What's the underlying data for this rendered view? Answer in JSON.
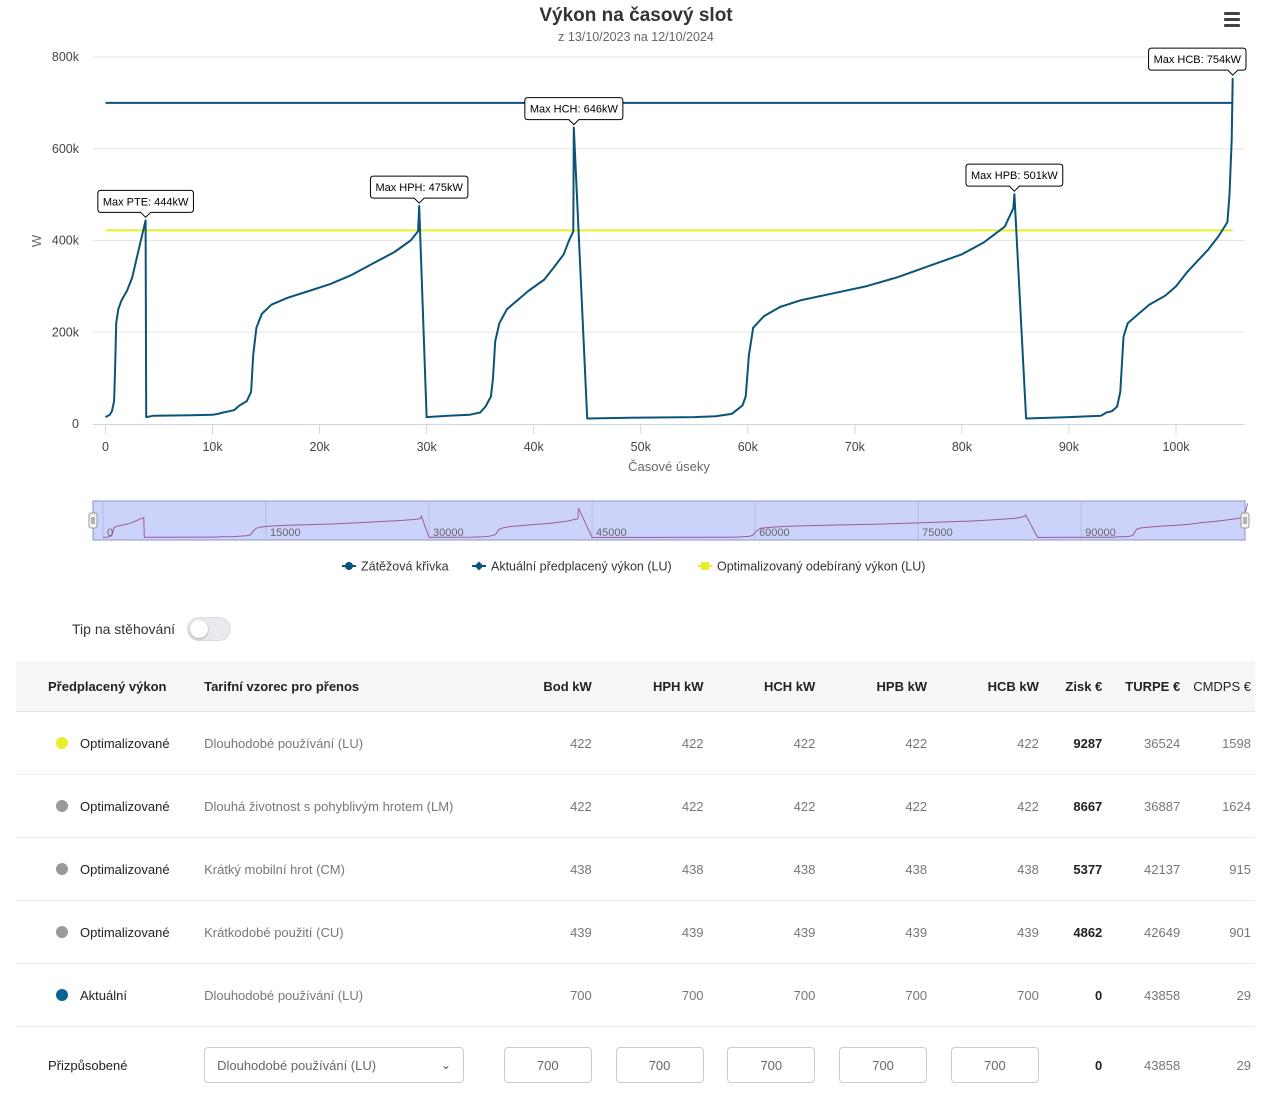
{
  "chart_data": {
    "type": "line",
    "title": "Výkon na časový slot",
    "subtitle": "z 13/10/2023 na 12/10/2024",
    "xlabel": "Časové úseky",
    "ylabel": "W",
    "xlim": [
      0,
      106000
    ],
    "ylim": [
      0,
      800000
    ],
    "x_ticks": [
      "0",
      "10k",
      "20k",
      "30k",
      "40k",
      "50k",
      "60k",
      "70k",
      "80k",
      "90k",
      "100k"
    ],
    "y_ticks": [
      "0",
      "200k",
      "400k",
      "600k",
      "800k"
    ],
    "series": [
      {
        "name": "Zátěžová křivka",
        "color": "#0b5379",
        "x": [
          0,
          400,
          600,
          800,
          900,
          1000,
          1200,
          1500,
          2000,
          2500,
          3000,
          3500,
          3750,
          3800,
          4500,
          8000,
          10000,
          10500,
          11000,
          12000,
          12500,
          13200,
          13600,
          13800,
          14100,
          14600,
          15500,
          17000,
          19000,
          21000,
          23000,
          25000,
          27000,
          28500,
          29200,
          29300,
          30000,
          32000,
          34000,
          35000,
          35500,
          36000,
          36200,
          36400,
          36800,
          37500,
          38500,
          39500,
          41000,
          42000,
          42800,
          43300,
          43700,
          43750,
          45000,
          50000,
          55000,
          57000,
          58500,
          59500,
          59800,
          60100,
          60500,
          61500,
          63000,
          65000,
          68000,
          71000,
          74000,
          77000,
          80000,
          82000,
          84000,
          84800,
          84900,
          86000,
          90000,
          93000,
          93500,
          94000,
          94500,
          94800,
          95100,
          95500,
          96500,
          97500,
          99000,
          100000,
          101000,
          102000,
          103000,
          104000,
          104800,
          105000,
          105200,
          105300
        ],
        "y": [
          15000,
          20000,
          28000,
          50000,
          120000,
          220000,
          250000,
          270000,
          290000,
          320000,
          370000,
          420000,
          444000,
          15000,
          18000,
          19000,
          20000,
          22000,
          25000,
          30000,
          40000,
          50000,
          70000,
          150000,
          210000,
          240000,
          260000,
          275000,
          290000,
          305000,
          325000,
          350000,
          375000,
          400000,
          420000,
          475000,
          15000,
          18000,
          20000,
          25000,
          38000,
          60000,
          100000,
          180000,
          220000,
          250000,
          270000,
          290000,
          315000,
          345000,
          370000,
          400000,
          420000,
          646000,
          12000,
          14000,
          15000,
          17000,
          22000,
          40000,
          60000,
          150000,
          210000,
          235000,
          255000,
          270000,
          285000,
          300000,
          320000,
          345000,
          370000,
          395000,
          430000,
          470000,
          501000,
          12000,
          15000,
          18000,
          25000,
          28000,
          38000,
          70000,
          190000,
          220000,
          240000,
          260000,
          280000,
          300000,
          330000,
          355000,
          380000,
          410000,
          440000,
          500000,
          620000,
          754000
        ]
      },
      {
        "name": "Aktuální předplacený výkon (LU)",
        "color": "#0b5379",
        "x": [
          0,
          105300
        ],
        "y": [
          700000,
          700000
        ]
      },
      {
        "name": "Optimalizovaný odebíraný výkon (LU)",
        "color": "#e8ef2a",
        "x": [
          0,
          105300
        ],
        "y": [
          422000,
          422000
        ]
      }
    ],
    "annotations": [
      {
        "text": "Max PTE: 444kW",
        "x": 3750,
        "y": 444000
      },
      {
        "text": "Max HPH: 475kW",
        "x": 29300,
        "y": 475000
      },
      {
        "text": "Max HCH: 646kW",
        "x": 43750,
        "y": 646000
      },
      {
        "text": "Max HPB: 501kW",
        "x": 84900,
        "y": 501000
      },
      {
        "text": "Max HCB: 754kW",
        "x": 105300,
        "y": 754000
      }
    ],
    "navigator_ticks": [
      "0",
      "15000",
      "30000",
      "45000",
      "60000",
      "75000",
      "90000"
    ],
    "navigator_range": [
      0,
      106000
    ],
    "legend_position": "bottom"
  },
  "menu_icon": "hamburger-menu-icon",
  "toggle": {
    "label": "Tip na stěhování",
    "on": false
  },
  "table": {
    "headers": [
      "Předplacený výkon",
      "Tarifní vzorec pro přenos",
      "Bod kW",
      "HPH kW",
      "HCH kW",
      "HPB kW",
      "HCB kW",
      "Zisk €",
      "TURPE €",
      "CMDPS €"
    ],
    "rows": [
      {
        "label": "Optimalizované",
        "dot_color": "#e8ef2a",
        "formula": "Dlouhodobé používání (LU)",
        "bod": "422",
        "hph": "422",
        "hch": "422",
        "hpb": "422",
        "hcb": "422",
        "zisk": "9287",
        "turpe": "36524",
        "cmdps": "1598"
      },
      {
        "label": "Optimalizované",
        "dot_color": "#9a9a9a",
        "formula": "Dlouhá životnost s pohyblivým hrotem (LM)",
        "bod": "422",
        "hph": "422",
        "hch": "422",
        "hpb": "422",
        "hcb": "422",
        "zisk": "8667",
        "turpe": "36887",
        "cmdps": "1624"
      },
      {
        "label": "Optimalizované",
        "dot_color": "#9a9a9a",
        "formula": "Krátký mobilní hrot (CM)",
        "bod": "438",
        "hph": "438",
        "hch": "438",
        "hpb": "438",
        "hcb": "438",
        "zisk": "5377",
        "turpe": "42137",
        "cmdps": "915"
      },
      {
        "label": "Optimalizované",
        "dot_color": "#9a9a9a",
        "formula": "Krátkodobé použití (CU)",
        "bod": "439",
        "hph": "439",
        "hch": "439",
        "hpb": "439",
        "hcb": "439",
        "zisk": "4862",
        "turpe": "42649",
        "cmdps": "901"
      },
      {
        "label": "Aktuální",
        "dot_color": "#0b6391",
        "formula": "Dlouhodobé používání (LU)",
        "bod": "700",
        "hph": "700",
        "hch": "700",
        "hpb": "700",
        "hcb": "700",
        "zisk": "0",
        "turpe": "43858",
        "cmdps": "29"
      }
    ],
    "custom": {
      "label": "Přizpůsobené",
      "formula": "Dlouhodobé používání (LU)",
      "bod": "700",
      "hph": "700",
      "hch": "700",
      "hpb": "700",
      "hcb": "700",
      "zisk": "0",
      "turpe": "43858",
      "cmdps": "29"
    }
  }
}
